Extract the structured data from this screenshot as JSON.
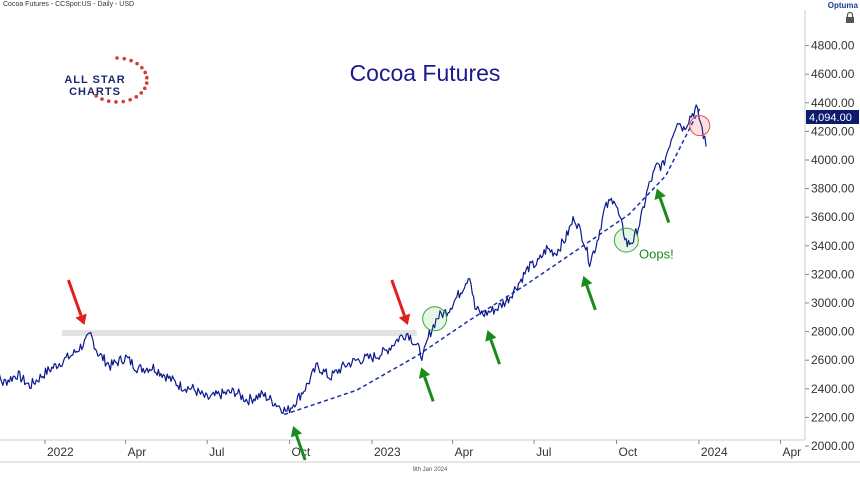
{
  "header": {
    "symbol_line": "Cocoa Futures - CCSpot:US - Daily - USD",
    "brand": "Optuma"
  },
  "footer": {
    "date_label": "9th Jan 2024"
  },
  "logo": {
    "line1": "ALL STAR",
    "line2": "CHARTS"
  },
  "colors": {
    "price_line": "#0d1a8c",
    "trendline": "#1a2fa8",
    "title": "#1a1a8c",
    "up_arrow": "#1a8a1a",
    "down_arrow": "#e02020",
    "resistance_band": "#e2e2e2",
    "last_price_bg": "#0d1a6e"
  },
  "chart_data": {
    "type": "line",
    "title": "Cocoa Futures",
    "xlabel": "",
    "ylabel": "",
    "ylim": [
      1900,
      4900
    ],
    "x_ticks": [
      "2022",
      "Apr",
      "Jul",
      "Oct",
      "2023",
      "Apr",
      "Jul",
      "Oct",
      "2024",
      "Apr"
    ],
    "y_ticks": [
      "2000.00",
      "2200.00",
      "2400.00",
      "2600.00",
      "2800.00",
      "3000.00",
      "3200.00",
      "3400.00",
      "3600.00",
      "3800.00",
      "4000.00",
      "4200.00",
      "4400.00",
      "4600.00",
      "4800.00"
    ],
    "last_price_label": "4,094.00",
    "series": [
      {
        "values": [
          {
            "x": "2021-11-01",
            "y": 2580
          },
          {
            "x": "2021-11-15",
            "y": 2440
          },
          {
            "x": "2021-12-01",
            "y": 2500
          },
          {
            "x": "2021-12-15",
            "y": 2420
          },
          {
            "x": "2022-01-03",
            "y": 2520
          },
          {
            "x": "2022-01-17",
            "y": 2580
          },
          {
            "x": "2022-02-01",
            "y": 2640
          },
          {
            "x": "2022-02-14",
            "y": 2720
          },
          {
            "x": "2022-02-21",
            "y": 2775
          },
          {
            "x": "2022-03-01",
            "y": 2650
          },
          {
            "x": "2022-03-15",
            "y": 2560
          },
          {
            "x": "2022-04-01",
            "y": 2620
          },
          {
            "x": "2022-04-15",
            "y": 2540
          },
          {
            "x": "2022-05-02",
            "y": 2550
          },
          {
            "x": "2022-05-16",
            "y": 2490
          },
          {
            "x": "2022-06-01",
            "y": 2420
          },
          {
            "x": "2022-06-15",
            "y": 2400
          },
          {
            "x": "2022-07-01",
            "y": 2330
          },
          {
            "x": "2022-07-15",
            "y": 2360
          },
          {
            "x": "2022-08-01",
            "y": 2380
          },
          {
            "x": "2022-08-15",
            "y": 2320
          },
          {
            "x": "2022-09-01",
            "y": 2360
          },
          {
            "x": "2022-09-15",
            "y": 2300
          },
          {
            "x": "2022-09-28",
            "y": 2240
          },
          {
            "x": "2022-10-10",
            "y": 2330
          },
          {
            "x": "2022-10-20",
            "y": 2420
          },
          {
            "x": "2022-11-01",
            "y": 2560
          },
          {
            "x": "2022-11-15",
            "y": 2480
          },
          {
            "x": "2022-12-01",
            "y": 2560
          },
          {
            "x": "2022-12-15",
            "y": 2600
          },
          {
            "x": "2023-01-02",
            "y": 2620
          },
          {
            "x": "2023-01-16",
            "y": 2660
          },
          {
            "x": "2023-02-01",
            "y": 2760
          },
          {
            "x": "2023-02-10",
            "y": 2790
          },
          {
            "x": "2023-02-20",
            "y": 2700
          },
          {
            "x": "2023-02-27",
            "y": 2620
          },
          {
            "x": "2023-03-06",
            "y": 2780
          },
          {
            "x": "2023-03-15",
            "y": 2900
          },
          {
            "x": "2023-03-27",
            "y": 2950
          },
          {
            "x": "2023-04-10",
            "y": 3080
          },
          {
            "x": "2023-04-20",
            "y": 3200
          },
          {
            "x": "2023-04-26",
            "y": 2960
          },
          {
            "x": "2023-05-05",
            "y": 2920
          },
          {
            "x": "2023-05-20",
            "y": 2960
          },
          {
            "x": "2023-06-01",
            "y": 3020
          },
          {
            "x": "2023-06-15",
            "y": 3150
          },
          {
            "x": "2023-06-25",
            "y": 3250
          },
          {
            "x": "2023-07-05",
            "y": 3280
          },
          {
            "x": "2023-07-15",
            "y": 3380
          },
          {
            "x": "2023-07-25",
            "y": 3350
          },
          {
            "x": "2023-08-05",
            "y": 3450
          },
          {
            "x": "2023-08-15",
            "y": 3600
          },
          {
            "x": "2023-08-25",
            "y": 3450
          },
          {
            "x": "2023-09-01",
            "y": 3290
          },
          {
            "x": "2023-09-08",
            "y": 3400
          },
          {
            "x": "2023-09-18",
            "y": 3660
          },
          {
            "x": "2023-09-28",
            "y": 3740
          },
          {
            "x": "2023-10-05",
            "y": 3580
          },
          {
            "x": "2023-10-13",
            "y": 3410
          },
          {
            "x": "2023-10-20",
            "y": 3440
          },
          {
            "x": "2023-10-28",
            "y": 3580
          },
          {
            "x": "2023-11-05",
            "y": 3800
          },
          {
            "x": "2023-11-15",
            "y": 3960
          },
          {
            "x": "2023-11-22",
            "y": 3960
          },
          {
            "x": "2023-12-01",
            "y": 4150
          },
          {
            "x": "2023-12-08",
            "y": 4280
          },
          {
            "x": "2023-12-15",
            "y": 4220
          },
          {
            "x": "2023-12-22",
            "y": 4300
          },
          {
            "x": "2023-12-29",
            "y": 4360
          },
          {
            "x": "2024-01-03",
            "y": 4260
          },
          {
            "x": "2024-01-09",
            "y": 4094
          }
        ]
      }
    ],
    "trendline": [
      {
        "x": "2022-09-25",
        "y": 2220
      },
      {
        "x": "2022-12-15",
        "y": 2390
      },
      {
        "x": "2023-02-20",
        "y": 2630
      },
      {
        "x": "2023-04-20",
        "y": 2880
      },
      {
        "x": "2023-06-20",
        "y": 3120
      },
      {
        "x": "2023-08-20",
        "y": 3380
      },
      {
        "x": "2023-10-15",
        "y": 3620
      },
      {
        "x": "2023-11-25",
        "y": 3890
      },
      {
        "x": "2024-01-02",
        "y": 4360
      }
    ],
    "resistance": {
      "x0": "2022-01-20",
      "x1": "2023-02-20",
      "y": 2790
    },
    "annotations": {
      "down_arrows": [
        {
          "x": "2022-02-14",
          "y": 2790
        },
        {
          "x": "2023-02-10",
          "y": 2790
        }
      ],
      "up_arrows": [
        {
          "x": "2022-10-05",
          "y": 2210
        },
        {
          "x": "2023-02-25",
          "y": 2620
        },
        {
          "x": "2023-05-10",
          "y": 2880
        },
        {
          "x": "2023-08-25",
          "y": 3260
        },
        {
          "x": "2023-11-15",
          "y": 3870
        }
      ],
      "green_circles": [
        {
          "x": "2023-03-12",
          "y": 2890
        },
        {
          "x": "2023-10-12",
          "y": 3440
        }
      ],
      "red_circles": [
        {
          "x": "2024-01-02",
          "y": 4240
        }
      ],
      "text": [
        {
          "label": "Oops!",
          "x": "2023-10-15",
          "y": 3340
        }
      ]
    }
  }
}
